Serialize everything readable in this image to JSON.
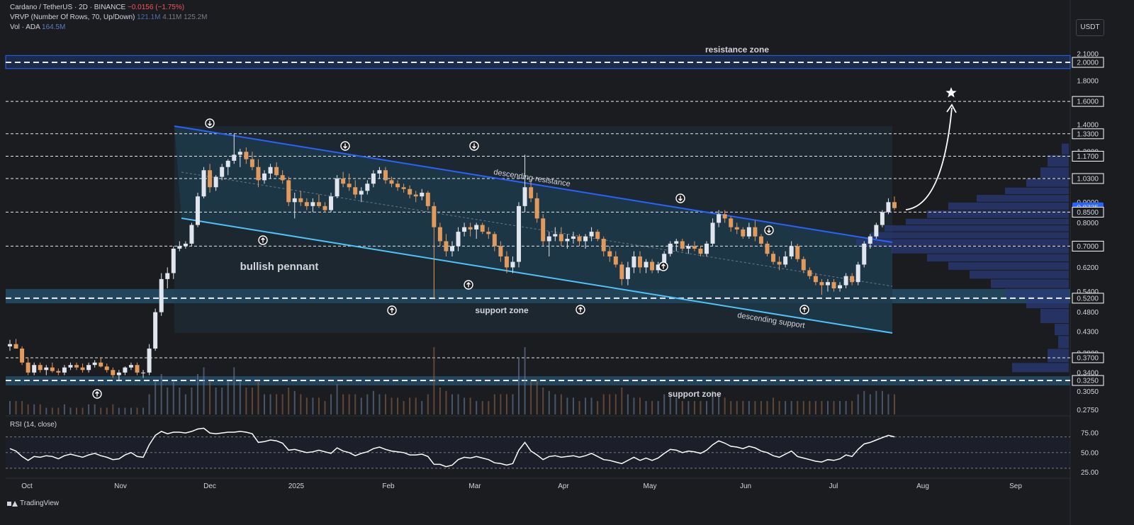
{
  "header": {
    "symbol": "Cardano / TetherUS · 2D · BINANCE",
    "change": "−0.0156 (−1.75%)",
    "vrvp_label": "VRVP (Number Of Rows, 70, Up/Down)",
    "vrvp_v1": "121.1M",
    "vrvp_v2": "4.11M",
    "vrvp_v3": "125.2M",
    "vol_label": "Vol · ADA",
    "vol_value": "164.5M"
  },
  "currency_button": "USDT",
  "rsi_title": "RSI (14, close)",
  "brand": "TradingView",
  "colors": {
    "background": "#1b1c20",
    "up_candle": "#e1e6ee",
    "down_candle": "#e29a5c",
    "channel_fill": "#1f3b4e",
    "zone_fill": "#23455c",
    "resistance_line": "#2962ff",
    "support_line": "#4fc3f7",
    "volume_profile": "#2a3a78",
    "rsi_line": "#ffffff"
  },
  "chart_data": {
    "type": "candlestick",
    "title": "Cardano / TetherUS · 2D · BINANCE",
    "y_axis": {
      "scale": "log",
      "range": [
        0.26,
        2.2
      ],
      "tick_labels": [
        "2.1000",
        "2.0000",
        "1.8000",
        "1.6000",
        "1.4000",
        "1.3300",
        "1.2000",
        "1.1700",
        "1.0300",
        "0.9000",
        "0.8735",
        "0.8500",
        "0.8000",
        "0.7000",
        "0.6200",
        "0.5400",
        "0.5200",
        "0.4800",
        "0.4300",
        "0.3800",
        "0.3700",
        "0.3400",
        "0.3250",
        "0.3050",
        "0.2750"
      ],
      "last_price": "0.8735"
    },
    "x_axis": {
      "labels": [
        "Oct",
        "Nov",
        "Dec",
        "2025",
        "Feb",
        "Mar",
        "Apr",
        "May",
        "Jun",
        "Jul",
        "Aug",
        "Sep"
      ]
    },
    "candles": [
      [
        0.395,
        0.41,
        0.385,
        0.4
      ],
      [
        0.4,
        0.412,
        0.39,
        0.39
      ],
      [
        0.39,
        0.395,
        0.355,
        0.36
      ],
      [
        0.36,
        0.37,
        0.335,
        0.34
      ],
      [
        0.34,
        0.36,
        0.335,
        0.355
      ],
      [
        0.355,
        0.36,
        0.34,
        0.345
      ],
      [
        0.345,
        0.355,
        0.335,
        0.35
      ],
      [
        0.35,
        0.36,
        0.34,
        0.343
      ],
      [
        0.343,
        0.348,
        0.335,
        0.34
      ],
      [
        0.34,
        0.355,
        0.335,
        0.35
      ],
      [
        0.35,
        0.36,
        0.345,
        0.355
      ],
      [
        0.355,
        0.36,
        0.345,
        0.35
      ],
      [
        0.35,
        0.358,
        0.34,
        0.345
      ],
      [
        0.345,
        0.36,
        0.34,
        0.355
      ],
      [
        0.355,
        0.365,
        0.35,
        0.36
      ],
      [
        0.36,
        0.37,
        0.35,
        0.352
      ],
      [
        0.352,
        0.358,
        0.34,
        0.345
      ],
      [
        0.345,
        0.35,
        0.33,
        0.335
      ],
      [
        0.335,
        0.345,
        0.325,
        0.34
      ],
      [
        0.34,
        0.352,
        0.335,
        0.35
      ],
      [
        0.35,
        0.36,
        0.345,
        0.355
      ],
      [
        0.355,
        0.36,
        0.335,
        0.34
      ],
      [
        0.34,
        0.345,
        0.33,
        0.34
      ],
      [
        0.34,
        0.4,
        0.335,
        0.39
      ],
      [
        0.39,
        0.49,
        0.385,
        0.48
      ],
      [
        0.48,
        0.6,
        0.47,
        0.58
      ],
      [
        0.58,
        0.62,
        0.55,
        0.6
      ],
      [
        0.6,
        0.7,
        0.58,
        0.69
      ],
      [
        0.69,
        0.72,
        0.68,
        0.7
      ],
      [
        0.7,
        0.72,
        0.69,
        0.71
      ],
      [
        0.71,
        0.8,
        0.7,
        0.79
      ],
      [
        0.79,
        0.95,
        0.78,
        0.93
      ],
      [
        0.93,
        1.1,
        0.92,
        1.08
      ],
      [
        1.08,
        1.12,
        0.95,
        0.98
      ],
      [
        0.98,
        1.05,
        0.96,
        1.04
      ],
      [
        1.04,
        1.12,
        1.02,
        1.1
      ],
      [
        1.1,
        1.15,
        1.05,
        1.14
      ],
      [
        1.14,
        1.33,
        1.12,
        1.18
      ],
      [
        1.18,
        1.22,
        1.1,
        1.2
      ],
      [
        1.2,
        1.23,
        1.12,
        1.15
      ],
      [
        1.15,
        1.2,
        1.08,
        1.1
      ],
      [
        1.1,
        1.15,
        0.98,
        1.02
      ],
      [
        1.02,
        1.08,
        1.0,
        1.06
      ],
      [
        1.06,
        1.12,
        1.03,
        1.1
      ],
      [
        1.1,
        1.13,
        1.04,
        1.05
      ],
      [
        1.05,
        1.08,
        1.0,
        1.02
      ],
      [
        1.02,
        1.04,
        0.88,
        0.9
      ],
      [
        0.9,
        0.95,
        0.82,
        0.92
      ],
      [
        0.92,
        0.96,
        0.88,
        0.9
      ],
      [
        0.9,
        0.92,
        0.86,
        0.88
      ],
      [
        0.88,
        0.92,
        0.85,
        0.9
      ],
      [
        0.9,
        0.94,
        0.87,
        0.88
      ],
      [
        0.88,
        0.9,
        0.85,
        0.86
      ],
      [
        0.86,
        0.95,
        0.85,
        0.93
      ],
      [
        0.93,
        1.05,
        0.92,
        1.03
      ],
      [
        1.03,
        1.07,
        0.98,
        1.0
      ],
      [
        1.0,
        1.06,
        0.96,
        0.98
      ],
      [
        0.98,
        1.02,
        0.92,
        0.94
      ],
      [
        0.94,
        0.98,
        0.9,
        0.96
      ],
      [
        0.96,
        1.02,
        0.94,
        1.0
      ],
      [
        1.0,
        1.08,
        0.98,
        1.06
      ],
      [
        1.06,
        1.1,
        1.03,
        1.08
      ],
      [
        1.08,
        1.1,
        1.0,
        1.02
      ],
      [
        1.02,
        1.04,
        0.98,
        1.0
      ],
      [
        1.0,
        1.02,
        0.96,
        0.98
      ],
      [
        0.98,
        1.0,
        0.95,
        0.97
      ],
      [
        0.97,
        0.99,
        0.92,
        0.94
      ],
      [
        0.94,
        0.96,
        0.9,
        0.93
      ],
      [
        0.93,
        0.97,
        0.91,
        0.95
      ],
      [
        0.95,
        0.96,
        0.86,
        0.88
      ],
      [
        0.88,
        0.9,
        0.52,
        0.78
      ],
      [
        0.78,
        0.8,
        0.7,
        0.72
      ],
      [
        0.72,
        0.75,
        0.66,
        0.68
      ],
      [
        0.68,
        0.72,
        0.66,
        0.7
      ],
      [
        0.7,
        0.78,
        0.68,
        0.76
      ],
      [
        0.76,
        0.8,
        0.74,
        0.78
      ],
      [
        0.78,
        0.8,
        0.74,
        0.77
      ],
      [
        0.77,
        0.8,
        0.73,
        0.79
      ],
      [
        0.79,
        0.8,
        0.75,
        0.76
      ],
      [
        0.76,
        0.78,
        0.73,
        0.75
      ],
      [
        0.75,
        0.76,
        0.68,
        0.7
      ],
      [
        0.7,
        0.72,
        0.64,
        0.66
      ],
      [
        0.66,
        0.68,
        0.6,
        0.62
      ],
      [
        0.62,
        0.66,
        0.6,
        0.64
      ],
      [
        0.64,
        0.9,
        0.62,
        0.88
      ],
      [
        0.88,
        1.18,
        0.85,
        0.98
      ],
      [
        0.98,
        1.02,
        0.9,
        0.92
      ],
      [
        0.92,
        0.95,
        0.8,
        0.82
      ],
      [
        0.82,
        0.84,
        0.7,
        0.72
      ],
      [
        0.72,
        0.76,
        0.66,
        0.74
      ],
      [
        0.74,
        0.78,
        0.72,
        0.75
      ],
      [
        0.75,
        0.78,
        0.7,
        0.72
      ],
      [
        0.72,
        0.75,
        0.69,
        0.73
      ],
      [
        0.73,
        0.76,
        0.71,
        0.74
      ],
      [
        0.74,
        0.75,
        0.7,
        0.72
      ],
      [
        0.72,
        0.75,
        0.69,
        0.74
      ],
      [
        0.74,
        0.78,
        0.72,
        0.76
      ],
      [
        0.76,
        0.77,
        0.72,
        0.73
      ],
      [
        0.73,
        0.74,
        0.66,
        0.68
      ],
      [
        0.68,
        0.7,
        0.64,
        0.66
      ],
      [
        0.66,
        0.68,
        0.62,
        0.63
      ],
      [
        0.63,
        0.64,
        0.56,
        0.58
      ],
      [
        0.58,
        0.64,
        0.56,
        0.62
      ],
      [
        0.62,
        0.68,
        0.6,
        0.66
      ],
      [
        0.66,
        0.68,
        0.6,
        0.62
      ],
      [
        0.62,
        0.65,
        0.6,
        0.64
      ],
      [
        0.64,
        0.65,
        0.6,
        0.61
      ],
      [
        0.61,
        0.64,
        0.6,
        0.63
      ],
      [
        0.63,
        0.68,
        0.62,
        0.67
      ],
      [
        0.67,
        0.72,
        0.66,
        0.71
      ],
      [
        0.71,
        0.73,
        0.68,
        0.72
      ],
      [
        0.72,
        0.73,
        0.68,
        0.69
      ],
      [
        0.69,
        0.71,
        0.67,
        0.7
      ],
      [
        0.7,
        0.72,
        0.68,
        0.69
      ],
      [
        0.69,
        0.7,
        0.66,
        0.67
      ],
      [
        0.67,
        0.72,
        0.66,
        0.71
      ],
      [
        0.71,
        0.82,
        0.7,
        0.8
      ],
      [
        0.8,
        0.86,
        0.78,
        0.84
      ],
      [
        0.84,
        0.86,
        0.8,
        0.82
      ],
      [
        0.82,
        0.83,
        0.76,
        0.78
      ],
      [
        0.78,
        0.8,
        0.75,
        0.77
      ],
      [
        0.77,
        0.78,
        0.73,
        0.74
      ],
      [
        0.74,
        0.8,
        0.73,
        0.78
      ],
      [
        0.78,
        0.81,
        0.72,
        0.74
      ],
      [
        0.74,
        0.75,
        0.7,
        0.71
      ],
      [
        0.71,
        0.72,
        0.66,
        0.67
      ],
      [
        0.67,
        0.68,
        0.63,
        0.64
      ],
      [
        0.64,
        0.66,
        0.61,
        0.63
      ],
      [
        0.63,
        0.68,
        0.62,
        0.66
      ],
      [
        0.66,
        0.72,
        0.65,
        0.7
      ],
      [
        0.7,
        0.71,
        0.64,
        0.65
      ],
      [
        0.65,
        0.66,
        0.6,
        0.61
      ],
      [
        0.61,
        0.62,
        0.58,
        0.59
      ],
      [
        0.59,
        0.6,
        0.56,
        0.57
      ],
      [
        0.57,
        0.58,
        0.53,
        0.56
      ],
      [
        0.56,
        0.58,
        0.54,
        0.57
      ],
      [
        0.57,
        0.58,
        0.54,
        0.55
      ],
      [
        0.55,
        0.57,
        0.54,
        0.56
      ],
      [
        0.56,
        0.6,
        0.55,
        0.59
      ],
      [
        0.59,
        0.6,
        0.56,
        0.57
      ],
      [
        0.57,
        0.64,
        0.56,
        0.63
      ],
      [
        0.63,
        0.72,
        0.62,
        0.71
      ],
      [
        0.71,
        0.75,
        0.69,
        0.74
      ],
      [
        0.74,
        0.8,
        0.73,
        0.79
      ],
      [
        0.79,
        0.86,
        0.78,
        0.85
      ],
      [
        0.85,
        0.92,
        0.84,
        0.9
      ],
      [
        0.9,
        0.93,
        0.86,
        0.87
      ]
    ],
    "volume_series": [
      0.2,
      0.2,
      0.2,
      0.15,
      0.15,
      0.15,
      0.1,
      0.1,
      0.1,
      0.15,
      0.1,
      0.1,
      0.1,
      0.15,
      0.15,
      0.1,
      0.1,
      0.15,
      0.1,
      0.1,
      0.1,
      0.1,
      0.1,
      0.3,
      0.5,
      0.6,
      0.4,
      0.5,
      0.4,
      0.3,
      0.4,
      0.6,
      0.7,
      0.5,
      0.4,
      0.4,
      0.5,
      0.7,
      0.5,
      0.4,
      0.4,
      0.5,
      0.3,
      0.3,
      0.3,
      0.3,
      0.4,
      0.35,
      0.3,
      0.25,
      0.25,
      0.25,
      0.2,
      0.3,
      0.45,
      0.3,
      0.3,
      0.3,
      0.25,
      0.3,
      0.35,
      0.3,
      0.3,
      0.25,
      0.25,
      0.2,
      0.25,
      0.25,
      0.2,
      0.3,
      1.0,
      0.4,
      0.35,
      0.3,
      0.3,
      0.25,
      0.25,
      0.2,
      0.2,
      0.2,
      0.3,
      0.3,
      0.3,
      0.3,
      0.85,
      1.0,
      0.5,
      0.5,
      0.4,
      0.35,
      0.3,
      0.3,
      0.25,
      0.25,
      0.2,
      0.25,
      0.25,
      0.2,
      0.3,
      0.3,
      0.3,
      0.4,
      0.3,
      0.25,
      0.25,
      0.2,
      0.2,
      0.2,
      0.3,
      0.3,
      0.25,
      0.2,
      0.2,
      0.2,
      0.2,
      0.2,
      0.35,
      0.3,
      0.25,
      0.2,
      0.2,
      0.2,
      0.2,
      0.2,
      0.2,
      0.2,
      0.25,
      0.2,
      0.2,
      0.2,
      0.2,
      0.2,
      0.2,
      0.2,
      0.2,
      0.2,
      0.2,
      0.2,
      0.2,
      0.2,
      0.3,
      0.35,
      0.3,
      0.35,
      0.35,
      0.3,
      0.3
    ],
    "rsi": {
      "y_tick_labels": [
        "75.00",
        "50.00",
        "25.00"
      ],
      "levels": [
        70,
        50,
        30
      ],
      "values": [
        55,
        52,
        45,
        40,
        45,
        44,
        46,
        45,
        42,
        46,
        48,
        46,
        44,
        47,
        49,
        46,
        44,
        41,
        42,
        47,
        50,
        45,
        44,
        60,
        72,
        77,
        74,
        76,
        76,
        75,
        77,
        80,
        81,
        75,
        74,
        75,
        76,
        76,
        77,
        76,
        74,
        63,
        64,
        66,
        65,
        62,
        53,
        54,
        52,
        50,
        51,
        53,
        51,
        49,
        56,
        52,
        50,
        46,
        49,
        51,
        55,
        57,
        54,
        52,
        51,
        50,
        47,
        47,
        48,
        45,
        35,
        35,
        32,
        34,
        41,
        44,
        43,
        45,
        43,
        41,
        37,
        36,
        34,
        36,
        53,
        63,
        52,
        47,
        41,
        45,
        46,
        44,
        45,
        46,
        44,
        46,
        49,
        45,
        41,
        40,
        38,
        36,
        40,
        44,
        40,
        43,
        40,
        43,
        49,
        54,
        53,
        50,
        52,
        51,
        49,
        53,
        60,
        65,
        62,
        58,
        57,
        55,
        58,
        56,
        52,
        50,
        46,
        44,
        48,
        52,
        45,
        43,
        41,
        39,
        38,
        41,
        40,
        42,
        47,
        45,
        54,
        61,
        63,
        66,
        69,
        72,
        70
      ]
    },
    "price_levels": [
      2.0,
      1.6,
      1.33,
      1.17,
      1.03,
      0.85,
      0.7,
      0.52,
      0.37,
      0.325
    ],
    "annotations": {
      "resistance_zone": "resistance zone",
      "support_zone_1": "support zone",
      "support_zone_2": "support zone",
      "descending_resistance": "descending resistance",
      "descending_support": "descending support",
      "pattern": "bullish pennant"
    }
  }
}
